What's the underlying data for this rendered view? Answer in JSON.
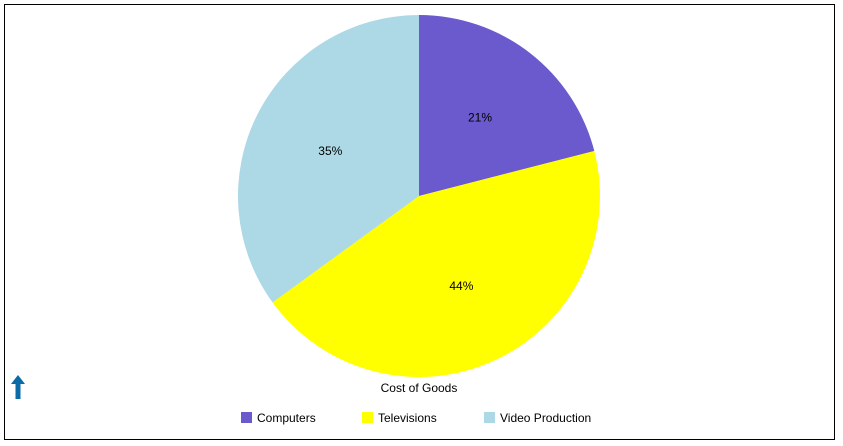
{
  "chart_data": {
    "type": "pie",
    "title": "Cost of Goods",
    "categories": [
      "Computers",
      "Televisions",
      "Video Production"
    ],
    "values": [
      21,
      44,
      35
    ],
    "value_labels": [
      "21%",
      "44%",
      "35%"
    ],
    "colors": [
      "#6a5acd",
      "#ffff00",
      "#add8e6"
    ],
    "start_angle_deg": 0,
    "direction": "clockwise",
    "legend": "bottom"
  },
  "icons": {
    "scroll_up": "up-arrow-icon",
    "scroll_up_color": "#0b6aa8"
  }
}
